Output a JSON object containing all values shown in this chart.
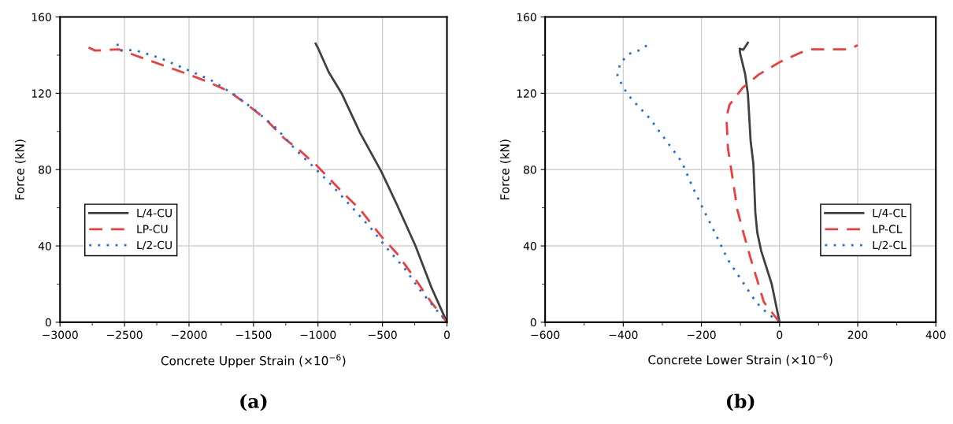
{
  "chart_data": [
    {
      "type": "line",
      "xlabel": "Concrete Upper Strain (×10$^{−6}$)",
      "ylabel": "Force (kN)",
      "annotations": [
        "(a)"
      ],
      "xlim": [
        -3000,
        0
      ],
      "ylim": [
        0,
        160
      ],
      "xticks": [
        -3000,
        {
          "value": -2750,
          "label": null
        },
        -2500,
        {
          "value": -2250,
          "label": null
        },
        -2000,
        {
          "value": -1750,
          "label": null
        },
        -1500,
        {
          "value": -1250,
          "label": null
        },
        -1000,
        {
          "value": -750,
          "label": null
        },
        -500,
        {
          "value": -250,
          "label": null
        },
        0
      ],
      "yticks": [
        0,
        {
          "value": 20,
          "label": null
        },
        40,
        {
          "value": 60,
          "label": null
        },
        80,
        {
          "value": 100,
          "label": null
        },
        120,
        {
          "value": 140,
          "label": null
        },
        160
      ],
      "grid": true,
      "legend": "lower left",
      "marker": "none",
      "series": [
        {
          "name": "L/4-CU",
          "color": "#404040",
          "line_style": "solid",
          "x": [
            -1018,
            -998,
            -916,
            -814,
            -672,
            -509,
            -387,
            -244,
            -122,
            0
          ],
          "values": [
            146,
            143.4,
            131,
            119.6,
            99,
            79,
            61.5,
            40,
            18.5,
            0
          ]
        },
        {
          "name": "LP-CU",
          "color": "#f03c3c",
          "line_style": "dashed",
          "x": [
            -2779,
            -2728,
            -2545,
            -2423,
            -2199,
            -2016,
            -1853,
            -1690,
            -1547,
            -1405,
            -1262,
            -1140,
            -1008,
            -794,
            -672,
            -509,
            -387,
            -244,
            -122,
            0
          ],
          "values": [
            144,
            142.4,
            143,
            140,
            134.6,
            130.2,
            126,
            121,
            114,
            106.4,
            96.4,
            90,
            82,
            67,
            59,
            45,
            36,
            22.5,
            10.5,
            0
          ]
        },
        {
          "name": "L/2-CU",
          "color": "#1f6fe0",
          "line_style": "dotted",
          "x": [
            -2555,
            -2545,
            -2423,
            -2220,
            -2037,
            -1832,
            -1649,
            -1486,
            -1323,
            -1181,
            -1028,
            -896,
            -733,
            -591,
            -468,
            -326,
            -204,
            -81,
            0
          ],
          "values": [
            146,
            142.4,
            142.7,
            138.4,
            133,
            127,
            119.3,
            111,
            101.7,
            91,
            81,
            72,
            60,
            49.4,
            39,
            28,
            16.5,
            6.4,
            0
          ]
        }
      ]
    },
    {
      "type": "line",
      "xlabel": "Concrete Lower Strain (×10$^{−6}$)",
      "ylabel": "Force (kN)",
      "annotations": [
        "(b)"
      ],
      "xlim": [
        -600,
        400
      ],
      "ylim": [
        0,
        160
      ],
      "xticks": [
        -600,
        {
          "value": -500,
          "label": null
        },
        -400,
        {
          "value": -300,
          "label": null
        },
        -200,
        {
          "value": -100,
          "label": null
        },
        0,
        {
          "value": 100,
          "label": null
        },
        200,
        {
          "value": 300,
          "label": null
        },
        400
      ],
      "yticks": [
        0,
        {
          "value": 20,
          "label": null
        },
        40,
        {
          "value": 60,
          "label": null
        },
        80,
        {
          "value": 100,
          "label": null
        },
        120,
        {
          "value": 140,
          "label": null
        },
        160
      ],
      "grid": true,
      "legend": "lower right",
      "marker": "none",
      "series": [
        {
          "name": "L/4-CL",
          "color": "#404040",
          "line_style": "solid",
          "x": [
            0,
            -20,
            -47,
            -57,
            -62,
            -67,
            -74,
            -81,
            -88,
            -101,
            -102,
            -93,
            -81
          ],
          "values": [
            0,
            20,
            37.4,
            47,
            57.6,
            83,
            95,
            119.6,
            130,
            141,
            143.4,
            142.8,
            146.5
          ]
        },
        {
          "name": "LP-CL",
          "color": "#f03c3c",
          "line_style": "dashed",
          "x": [
            0,
            -40,
            -74,
            -94,
            -108,
            -121,
            -132,
            -136,
            -128,
            -94,
            -54,
            1,
            55,
            82,
            136,
            177,
            200
          ],
          "values": [
            0,
            10.5,
            33.4,
            48,
            59,
            76.5,
            91,
            107.5,
            114,
            123,
            129.7,
            136.4,
            141.4,
            143,
            143,
            143,
            145.2
          ]
        },
        {
          "name": "L/2-CL",
          "color": "#1f6fe0",
          "line_style": "dotted",
          "x": [
            0,
            -33,
            -60,
            -94,
            -132,
            -162,
            -193,
            -223,
            -250,
            -291,
            -332,
            -379,
            -400,
            -415,
            -408,
            -385,
            -352,
            -335
          ],
          "values": [
            0,
            5,
            10.5,
            21,
            32.7,
            45.5,
            58.3,
            71,
            84,
            95.4,
            106.8,
            117,
            123,
            129.4,
            135.8,
            140.7,
            143,
            146
          ]
        }
      ]
    }
  ]
}
